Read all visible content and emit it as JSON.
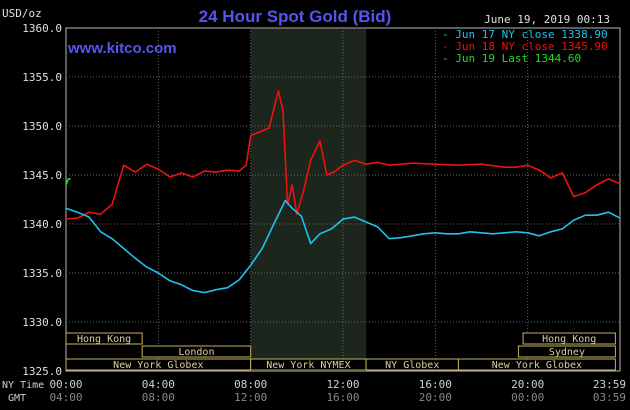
{
  "chart_data": {
    "type": "line",
    "title": "24 Hour Spot Gold (Bid)",
    "website": "www.kitco.com",
    "date_label": "June 19, 2019 00:13",
    "y_unit": "USD/oz",
    "ylim": [
      1325,
      1360
    ],
    "y_ticks": [
      "1360.0",
      "1355.0",
      "1350.0",
      "1345.0",
      "1340.0",
      "1335.0",
      "1330.0",
      "1325.0"
    ],
    "x_hours": [
      0,
      24
    ],
    "x_ticks_ny": [
      "00:00",
      "04:00",
      "08:00",
      "12:00",
      "16:00",
      "20:00",
      "23:59"
    ],
    "x_ticks_gmt": [
      "04:00",
      "08:00",
      "12:00",
      "16:00",
      "20:00",
      "00:00",
      "03:59"
    ],
    "axis_row_labels": {
      "ny": "NY Time",
      "gmt": "GMT"
    },
    "shaded_hours": [
      8,
      13
    ],
    "legend": [
      {
        "label": "Jun 17 NY close 1338.90",
        "color": "#22c0ee"
      },
      {
        "label": "Jun 18 NY close 1345.90",
        "color": "#ee1111"
      },
      {
        "label": "Jun 19 Last 1344.60",
        "color": "#22dd22"
      }
    ],
    "series": [
      {
        "color": "#ee1111",
        "x": [
          0,
          0.5,
          1.0,
          1.5,
          2.0,
          2.5,
          3.0,
          3.5,
          4.0,
          4.5,
          5.0,
          5.5,
          6.0,
          6.5,
          7.0,
          7.5,
          7.8,
          8.0,
          8.4,
          8.8,
          9.2,
          9.4,
          9.6,
          9.8,
          10.0,
          10.3,
          10.6,
          11.0,
          11.3,
          11.6,
          12.0,
          12.5,
          13.0,
          13.5,
          14.0,
          15.0,
          16.0,
          17.0,
          18.0,
          19.0,
          19.5,
          20.0,
          20.5,
          21.0,
          21.5,
          22.0,
          22.5,
          23.0,
          23.5,
          24.0
        ],
        "y": [
          1340.5,
          1340.6,
          1341.2,
          1341.0,
          1342.0,
          1346.0,
          1345.3,
          1346.1,
          1345.6,
          1344.8,
          1345.2,
          1344.8,
          1345.4,
          1345.3,
          1345.5,
          1345.4,
          1346.0,
          1349.0,
          1349.4,
          1349.8,
          1353.6,
          1351.5,
          1342.0,
          1344.0,
          1341.0,
          1343.5,
          1346.5,
          1348.5,
          1345.0,
          1345.3,
          1346.0,
          1346.5,
          1346.1,
          1346.3,
          1346.0,
          1346.2,
          1346.1,
          1346.0,
          1346.1,
          1345.8,
          1345.8,
          1346.0,
          1345.5,
          1344.7,
          1345.2,
          1342.8,
          1343.2,
          1344.0,
          1344.6,
          1344.1
        ]
      },
      {
        "color": "#22c0ee",
        "x": [
          0,
          0.5,
          1.0,
          1.5,
          2.0,
          2.5,
          3.0,
          3.5,
          4.0,
          4.5,
          5.0,
          5.5,
          6.0,
          6.5,
          7.0,
          7.5,
          8.0,
          8.5,
          9.0,
          9.5,
          9.8,
          10.2,
          10.6,
          11.0,
          11.5,
          12.0,
          12.5,
          13.0,
          13.5,
          14.0,
          14.5,
          15.0,
          15.5,
          16.0,
          16.5,
          17.0,
          17.5,
          18.0,
          18.5,
          19.0,
          19.5,
          20.0,
          20.5,
          21.0,
          21.5,
          22.0,
          22.5,
          23.0,
          23.5,
          24.0
        ],
        "y": [
          1341.6,
          1341.2,
          1340.7,
          1339.2,
          1338.5,
          1337.5,
          1336.5,
          1335.6,
          1335.0,
          1334.2,
          1333.8,
          1333.2,
          1333.0,
          1333.3,
          1333.5,
          1334.3,
          1335.8,
          1337.5,
          1340.0,
          1342.4,
          1341.6,
          1340.8,
          1338.0,
          1339.0,
          1339.5,
          1340.5,
          1340.7,
          1340.2,
          1339.7,
          1338.5,
          1338.6,
          1338.8,
          1339.0,
          1339.1,
          1339.0,
          1339.0,
          1339.2,
          1339.1,
          1339.0,
          1339.1,
          1339.2,
          1339.1,
          1338.8,
          1339.2,
          1339.5,
          1340.4,
          1340.9,
          1340.9,
          1341.2,
          1340.6
        ]
      },
      {
        "color": "#22dd22",
        "x": [
          0.0,
          0.1,
          0.2
        ],
        "y": [
          1344.0,
          1344.6,
          1344.6
        ]
      }
    ],
    "sessions": [
      {
        "label": "Hong Kong",
        "start": 0.0,
        "end": 3.3,
        "row": 0
      },
      {
        "label": "Hong Kong",
        "start": 19.8,
        "end": 23.8,
        "row": 0
      },
      {
        "label": "London",
        "start": 3.3,
        "end": 8.0,
        "row": 1
      },
      {
        "label": "Sydney",
        "start": 19.6,
        "end": 23.8,
        "row": 1
      },
      {
        "label": "New York Globex",
        "start": 0.0,
        "end": 8.0,
        "row": 2
      },
      {
        "label": "New York NYMEX",
        "start": 8.0,
        "end": 13.0,
        "row": 2
      },
      {
        "label": "NY Globex",
        "start": 13.0,
        "end": 17.0,
        "row": 2
      },
      {
        "label": "New York Globex",
        "start": 17.0,
        "end": 23.8,
        "row": 2
      }
    ]
  }
}
